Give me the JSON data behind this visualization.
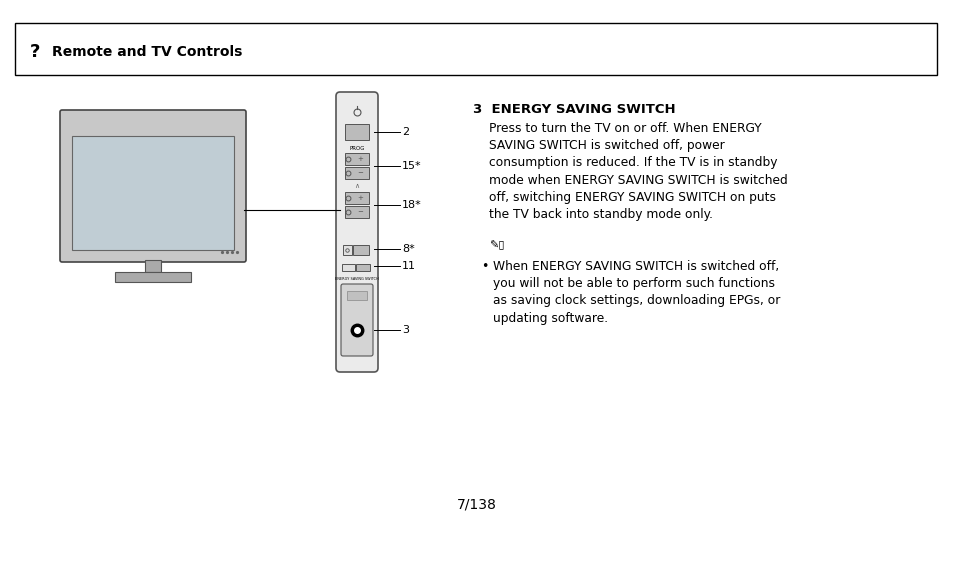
{
  "bg_color": "#ffffff",
  "header_question_mark": "?",
  "header_title": "Remote and TV Controls",
  "page_number": "7/138",
  "section_title": "3  ENERGY SAVING SWITCH",
  "paragraph1": "Press to turn the TV on or off. When ENERGY\nSAVING SWITCH is switched off, power\nconsumption is reduced. If the TV is in standby\nmode when ENERGY SAVING SWITCH is switched\noff, switching ENERGY SAVING SWITCH on puts\nthe TV back into standby mode only.",
  "bullet_text": "When ENERGY SAVING SWITCH is switched off,\nyou will not be able to perform such functions\nas saving clock settings, downloading EPGs, or\nupdating software.",
  "label_2": "2",
  "label_15": "15*",
  "label_18": "18*",
  "label_8": "8*",
  "label_11": "11",
  "label_3": "3"
}
